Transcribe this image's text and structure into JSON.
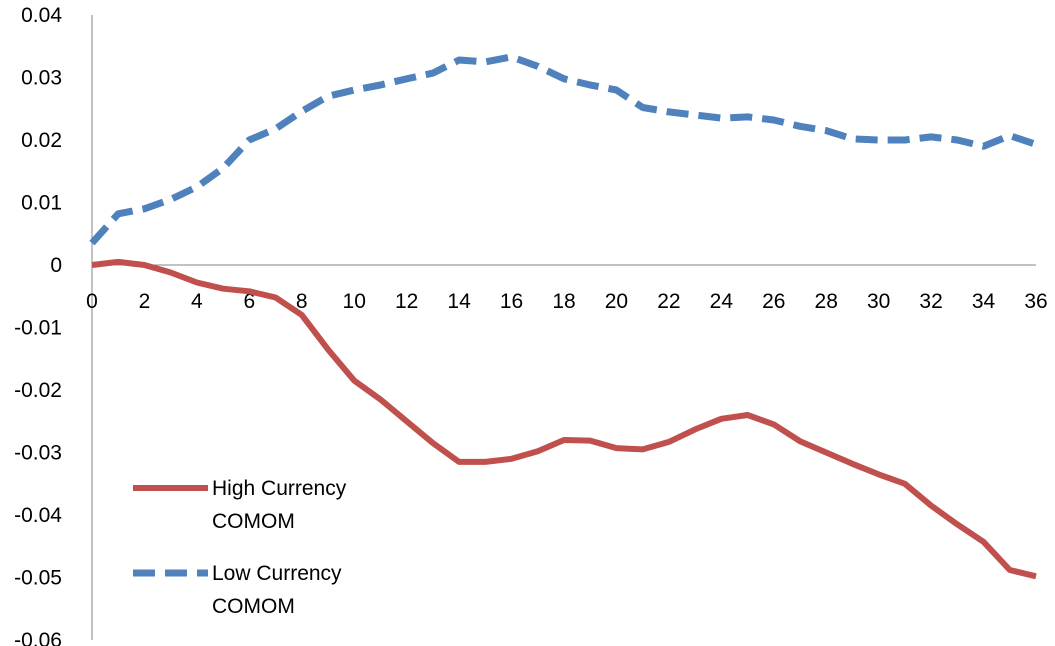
{
  "chart_data": {
    "type": "line",
    "title": "",
    "xlabel": "",
    "ylabel": "",
    "xlim": [
      0,
      36
    ],
    "ylim": [
      -0.06,
      0.04
    ],
    "x_ticks": [
      0,
      2,
      4,
      6,
      8,
      10,
      12,
      14,
      16,
      18,
      20,
      22,
      24,
      26,
      28,
      30,
      32,
      34,
      36
    ],
    "y_ticks": [
      0.04,
      0.03,
      0.02,
      0.01,
      0,
      -0.01,
      -0.02,
      -0.03,
      -0.04,
      -0.05,
      -0.06
    ],
    "grid": false,
    "legend_position": "bottom-left",
    "x": [
      0,
      1,
      2,
      3,
      4,
      5,
      6,
      7,
      8,
      9,
      10,
      11,
      12,
      13,
      14,
      15,
      16,
      17,
      18,
      19,
      20,
      21,
      22,
      23,
      24,
      25,
      26,
      27,
      28,
      29,
      30,
      31,
      32,
      33,
      34,
      35,
      36
    ],
    "series": [
      {
        "name": "High Currency COMOM",
        "legend_lines": [
          "High Currency",
          "COMOM"
        ],
        "color": "#C0504D",
        "dash": "solid",
        "values": [
          0.0,
          0.0005,
          0.0,
          -0.0012,
          -0.0028,
          -0.0038,
          -0.0042,
          -0.0052,
          -0.008,
          -0.0135,
          -0.0185,
          -0.0215,
          -0.025,
          -0.0285,
          -0.0315,
          -0.0315,
          -0.031,
          -0.0298,
          -0.028,
          -0.0281,
          -0.0293,
          -0.0295,
          -0.0283,
          -0.0263,
          -0.0246,
          -0.024,
          -0.0255,
          -0.0282,
          -0.03,
          -0.0318,
          -0.0335,
          -0.035,
          -0.0385,
          -0.0415,
          -0.0443,
          -0.0488,
          -0.0498
        ]
      },
      {
        "name": "Low Currency COMOM",
        "legend_lines": [
          "Low Currency",
          "COMOM"
        ],
        "color": "#4F81BD",
        "dash": "dashed",
        "values": [
          0.0035,
          0.0082,
          0.009,
          0.0105,
          0.0125,
          0.0155,
          0.02,
          0.0218,
          0.0246,
          0.027,
          0.028,
          0.0288,
          0.0298,
          0.0307,
          0.0328,
          0.0325,
          0.0333,
          0.0318,
          0.0298,
          0.0288,
          0.028,
          0.0252,
          0.0245,
          0.024,
          0.0235,
          0.0237,
          0.0232,
          0.0222,
          0.0215,
          0.0202,
          0.02,
          0.02,
          0.0205,
          0.02,
          0.019,
          0.0207,
          0.0193
        ]
      }
    ]
  }
}
